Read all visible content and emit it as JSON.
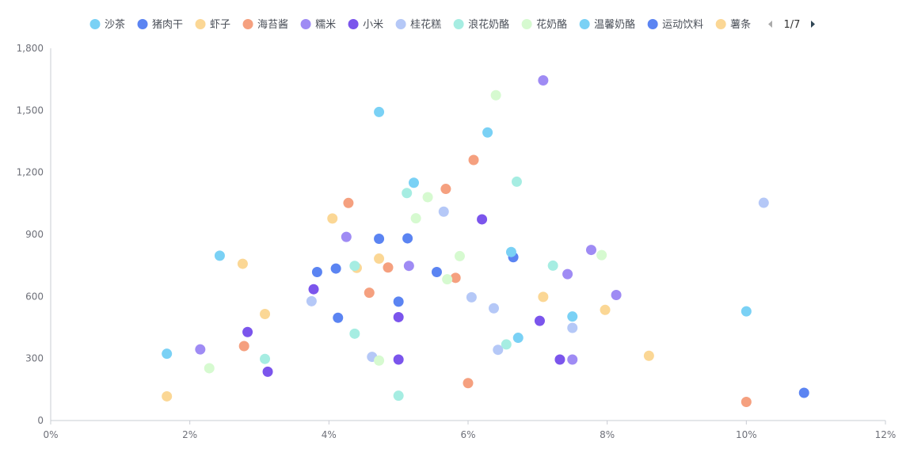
{
  "chart_data": {
    "type": "scatter",
    "title": "",
    "xlabel": "",
    "ylabel": "",
    "xlim": [
      0,
      12
    ],
    "ylim": [
      0,
      1800
    ],
    "x_ticks": [
      {
        "value": 0,
        "label": "0%"
      },
      {
        "value": 2,
        "label": "2%"
      },
      {
        "value": 4,
        "label": "4%"
      },
      {
        "value": 6,
        "label": "6%"
      },
      {
        "value": 8,
        "label": "8%"
      },
      {
        "value": 10,
        "label": "10%"
      },
      {
        "value": 12,
        "label": "12%"
      }
    ],
    "y_ticks": [
      {
        "value": 0,
        "label": "0"
      },
      {
        "value": 300,
        "label": "300"
      },
      {
        "value": 600,
        "label": "600"
      },
      {
        "value": 900,
        "label": "900"
      },
      {
        "value": 1200,
        "label": "1,200"
      },
      {
        "value": 1500,
        "label": "1,500"
      },
      {
        "value": 1800,
        "label": "1,800"
      }
    ],
    "grid": false,
    "legend_position": "top-center",
    "legend_page": "1/7",
    "series": [
      {
        "name": "沙茶",
        "color": "#7ad1f5",
        "points": [
          [
            1.67,
            323
          ],
          [
            2.43,
            797
          ],
          [
            4.72,
            1492
          ],
          [
            5.22,
            1150
          ],
          [
            6.28,
            1393
          ],
          [
            7.5,
            503
          ],
          [
            6.72,
            400
          ],
          [
            10.0,
            528
          ]
        ]
      },
      {
        "name": "猪肉干",
        "color": "#5b84f2",
        "points": [
          [
            3.83,
            718
          ],
          [
            4.1,
            735
          ],
          [
            4.13,
            497
          ],
          [
            4.72,
            879
          ],
          [
            5.13,
            881
          ],
          [
            5.0,
            575
          ],
          [
            5.55,
            718
          ],
          [
            6.65,
            790
          ],
          [
            10.83,
            134
          ]
        ]
      },
      {
        "name": "虾子",
        "color": "#fbd795",
        "points": [
          [
            1.67,
            117
          ],
          [
            2.76,
            758
          ],
          [
            3.08,
            515
          ],
          [
            4.05,
            977
          ],
          [
            4.4,
            738
          ],
          [
            4.72,
            783
          ],
          [
            7.08,
            598
          ],
          [
            7.97,
            535
          ],
          [
            8.6,
            313
          ]
        ]
      },
      {
        "name": "海苔酱",
        "color": "#f5a07f",
        "points": [
          [
            2.78,
            360
          ],
          [
            4.28,
            1052
          ],
          [
            4.58,
            618
          ],
          [
            4.85,
            740
          ],
          [
            5.68,
            1120
          ],
          [
            5.82,
            690
          ],
          [
            6.08,
            1260
          ],
          [
            6.0,
            181
          ],
          [
            10.0,
            90
          ]
        ]
      },
      {
        "name": "糯米",
        "color": "#9f8bf4",
        "points": [
          [
            2.15,
            344
          ],
          [
            4.25,
            888
          ],
          [
            5.15,
            748
          ],
          [
            7.08,
            1645
          ],
          [
            7.43,
            708
          ],
          [
            7.5,
            295
          ],
          [
            7.77,
            825
          ],
          [
            8.13,
            607
          ]
        ]
      },
      {
        "name": "小米",
        "color": "#7b55ec",
        "points": [
          [
            2.83,
            428
          ],
          [
            3.12,
            236
          ],
          [
            3.78,
            635
          ],
          [
            5.0,
            500
          ],
          [
            5.0,
            295
          ],
          [
            6.2,
            973
          ],
          [
            7.03,
            482
          ],
          [
            7.32,
            295
          ]
        ]
      },
      {
        "name": "桂花糕",
        "color": "#b5c8f7",
        "points": [
          [
            3.75,
            577
          ],
          [
            4.62,
            308
          ],
          [
            5.65,
            1010
          ],
          [
            6.05,
            596
          ],
          [
            6.37,
            543
          ],
          [
            6.43,
            342
          ],
          [
            7.5,
            448
          ],
          [
            10.25,
            1053
          ]
        ]
      },
      {
        "name": "浪花奶酪",
        "color": "#a6ede2",
        "points": [
          [
            3.08,
            298
          ],
          [
            4.37,
            420
          ],
          [
            4.37,
            748
          ],
          [
            5.0,
            120
          ],
          [
            5.12,
            1100
          ],
          [
            6.55,
            368
          ],
          [
            6.7,
            1155
          ],
          [
            7.22,
            749
          ]
        ]
      },
      {
        "name": "花奶酪",
        "color": "#d6fad0",
        "points": [
          [
            2.28,
            253
          ],
          [
            4.72,
            290
          ],
          [
            5.25,
            978
          ],
          [
            5.42,
            1080
          ],
          [
            5.7,
            683
          ],
          [
            5.88,
            795
          ],
          [
            6.4,
            1573
          ],
          [
            7.92,
            800
          ]
        ]
      },
      {
        "name": "温馨奶酪",
        "color": "#7ad1f5",
        "points": [
          [
            6.62,
            815
          ]
        ]
      },
      {
        "name": "运动饮料",
        "color": "#5b84f2",
        "points": []
      },
      {
        "name": "薯条",
        "color": "#fbd795",
        "points": []
      },
      {
        "name": "",
        "color": "#f5a07f",
        "points": []
      }
    ]
  }
}
